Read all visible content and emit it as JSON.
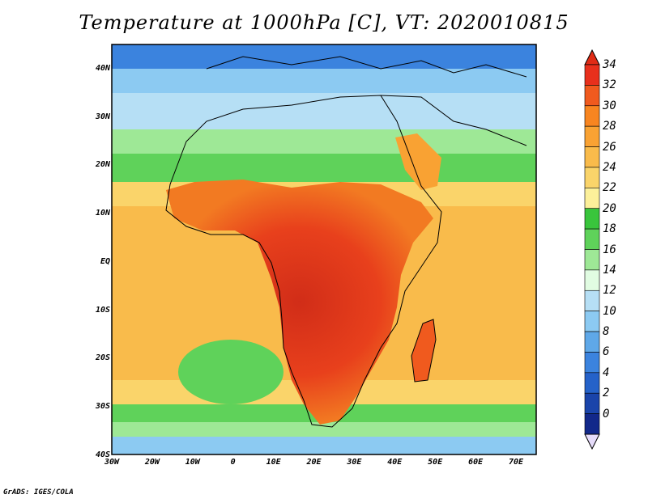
{
  "title": "Temperature at 1000hPa [C], VT: 2020010815",
  "footer": "GrADS: IGES/COLA",
  "map": {
    "type": "filled-contour",
    "variable": "Temperature at 1000hPa",
    "units": "C",
    "valid_time": "2020010815",
    "region": "Africa",
    "lon_range": [
      -30,
      75
    ],
    "lat_range": [
      -40,
      45
    ],
    "lat_labels": [
      "40N",
      "30N",
      "20N",
      "10N",
      "EQ",
      "10S",
      "20S",
      "30S",
      "40S"
    ],
    "lon_labels": [
      "30W",
      "20W",
      "10W",
      "0",
      "10E",
      "20E",
      "30E",
      "40E",
      "50E",
      "60E",
      "70E"
    ],
    "colorbar": {
      "labels": [
        "34",
        "32",
        "30",
        "28",
        "26",
        "24",
        "22",
        "20",
        "18",
        "16",
        "14",
        "12",
        "10",
        "8",
        "6",
        "4",
        "2",
        "0"
      ],
      "colors_top_to_bottom": [
        "#e8301c",
        "#f05a1e",
        "#f88520",
        "#f9a233",
        "#f9bb4b",
        "#fad46a",
        "#fcf09a",
        "#39c53c",
        "#5fd25a",
        "#9ee896",
        "#e1fce2",
        "#b6dff5",
        "#8ccaf2",
        "#5fa8e8",
        "#3b83de",
        "#2562c9",
        "#1a44aa",
        "#12288a"
      ],
      "under_color": "#e6dcfa",
      "over_color": "#e02c16"
    }
  }
}
